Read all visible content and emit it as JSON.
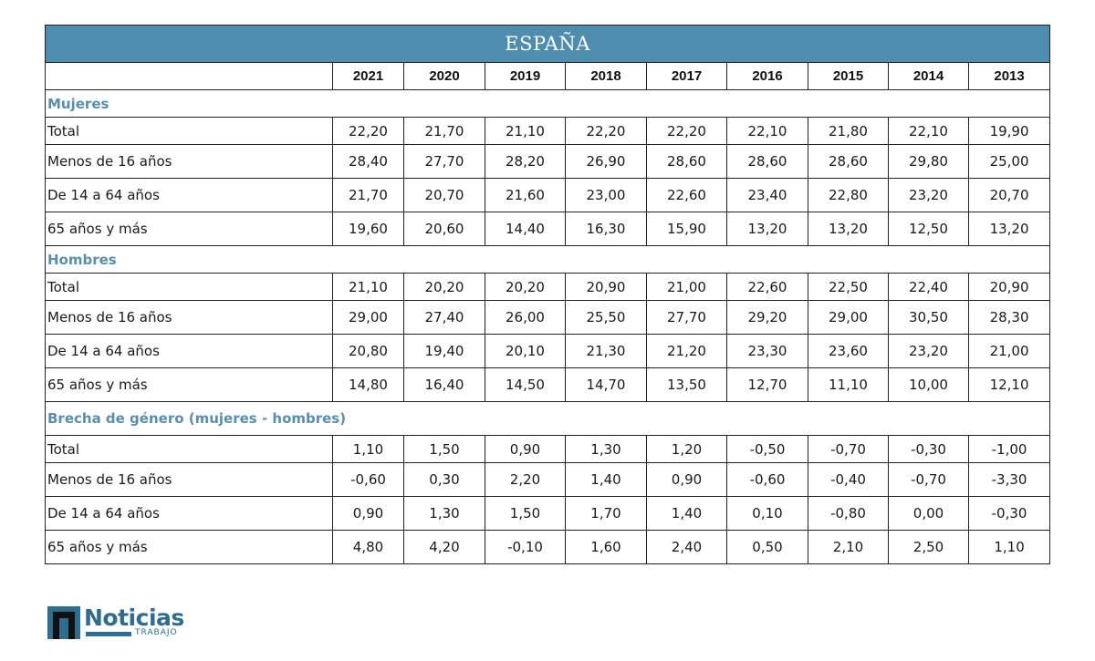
{
  "title": "ESPAÑA",
  "years": [
    "2021",
    "2020",
    "2019",
    "2018",
    "2017",
    "2016",
    "2015",
    "2014",
    "2013"
  ],
  "sections": [
    {
      "name": "Mujeres",
      "rows": [
        {
          "label": "Total",
          "values": [
            "22,20",
            "21,70",
            "21,10",
            "22,20",
            "22,20",
            "22,10",
            "21,80",
            "22,10",
            "19,90"
          ]
        },
        {
          "label": "Menos de 16 años",
          "values": [
            "28,40",
            "27,70",
            "28,20",
            "26,90",
            "28,60",
            "28,60",
            "28,60",
            "29,80",
            "25,00"
          ]
        },
        {
          "label": "De 14 a 64 años",
          "values": [
            "21,70",
            "20,70",
            "21,60",
            "23,00",
            "22,60",
            "23,40",
            "22,80",
            "23,20",
            "20,70"
          ]
        },
        {
          "label": "65 años y más",
          "values": [
            "19,60",
            "20,60",
            "14,40",
            "16,30",
            "15,90",
            "13,20",
            "13,20",
            "12,50",
            "13,20"
          ]
        }
      ]
    },
    {
      "name": "Hombres",
      "rows": [
        {
          "label": "Total",
          "values": [
            "21,10",
            "20,20",
            "20,20",
            "20,90",
            "21,00",
            "22,60",
            "22,50",
            "22,40",
            "20,90"
          ]
        },
        {
          "label": "Menos de 16 años",
          "values": [
            "29,00",
            "27,40",
            "26,00",
            "25,50",
            "27,70",
            "29,20",
            "29,00",
            "30,50",
            "28,30"
          ]
        },
        {
          "label": "De 14 a 64 años",
          "values": [
            "20,80",
            "19,40",
            "20,10",
            "21,30",
            "21,20",
            "23,30",
            "23,60",
            "23,20",
            "21,00"
          ]
        },
        {
          "label": "65 años y más",
          "values": [
            "14,80",
            "16,40",
            "14,50",
            "14,70",
            "13,50",
            "12,70",
            "11,10",
            "10,00",
            "12,10"
          ]
        }
      ]
    },
    {
      "name": "Brecha de género (mujeres - hombres)",
      "rows": [
        {
          "label": "Total",
          "values": [
            "1,10",
            "1,50",
            "0,90",
            "1,30",
            "1,20",
            "-0,50",
            "-0,70",
            "-0,30",
            "-1,00"
          ]
        },
        {
          "label": "Menos de 16 años",
          "values": [
            "-0,60",
            "0,30",
            "2,20",
            "1,40",
            "0,90",
            "-0,60",
            "-0,40",
            "-0,70",
            "-3,30"
          ]
        },
        {
          "label": "De 14 a 64 años",
          "values": [
            "0,90",
            "1,30",
            "1,50",
            "1,70",
            "1,40",
            "0,10",
            "-0,80",
            "0,00",
            "-0,30"
          ]
        },
        {
          "label": "65 años y más",
          "values": [
            "4,80",
            "4,20",
            "-0,10",
            "1,60",
            "2,40",
            "0,50",
            "2,10",
            "2,50",
            "1,10"
          ]
        }
      ]
    }
  ],
  "logo": {
    "word": "Noticias",
    "sub": "TRABAJO"
  },
  "colors": {
    "header_bg": "#4e8dad",
    "section_text": "#5a8fac",
    "brand": "#2f6d8f"
  }
}
